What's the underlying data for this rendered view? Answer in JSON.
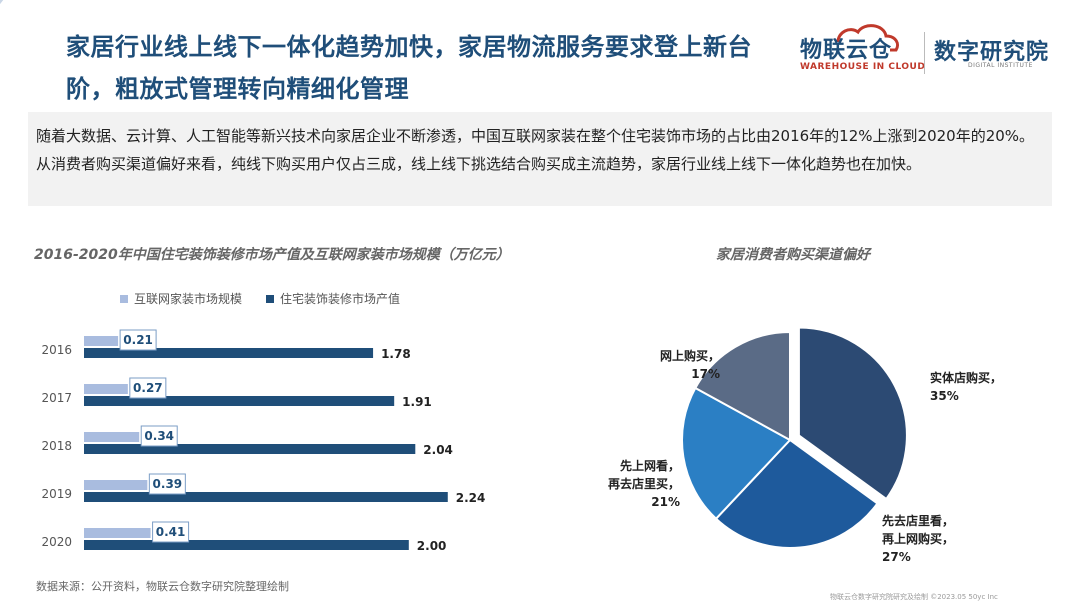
{
  "header": {
    "title": "家居行业线上线下一体化趋势加快，家居物流服务要求登上新台阶，粗放式管理转向精细化管理"
  },
  "logo": {
    "brand_main": "物联云仓",
    "brand_sub": "WAREHOUSE IN CLOUD",
    "institute_main": "数字研究院",
    "institute_sub": "DIGITAL INSTITUTE"
  },
  "intro": {
    "text": "随着大数据、云计算、人工智能等新兴技术向家居企业不断渗透，中国互联网家装在整个住宅装饰市场的占比由2016年的12%上涨到2020年的20%。从消费者购买渠道偏好来看，纯线下购买用户仅占三成，线上线下挑选结合购买成主流趋势，家居行业线上线下一体化趋势也在加快。"
  },
  "source": "数据来源：公开资料，物联云仓数字研究院整理绘制",
  "footer": "物联云仓数字研究院研究及绘制 ©2023.05 50yc Inc",
  "colors": {
    "brand_blue": "#1f4e79",
    "light_bar": "#a9bcdf",
    "dark_bar": "#1f4e79"
  },
  "chart_data": [
    {
      "type": "bar",
      "orientation": "horizontal",
      "title": "2016-2020年中国住宅装饰装修市场产值及互联网家装市场规模（万亿元）",
      "categories": [
        "2016",
        "2017",
        "2018",
        "2019",
        "2020"
      ],
      "series": [
        {
          "name": "互联网家装市场规模",
          "values": [
            0.21,
            0.27,
            0.34,
            0.39,
            0.41
          ],
          "labels": [
            "0.21",
            "0.27",
            "0.34",
            "0.39",
            "0.41"
          ],
          "color": "#a9bcdf"
        },
        {
          "name": "住宅装饰装修市场产值",
          "values": [
            1.78,
            1.91,
            2.04,
            2.24,
            2.0
          ],
          "labels": [
            "1.78",
            "1.91",
            "2.04",
            "2.24",
            "2.00"
          ],
          "color": "#1f4e79"
        }
      ],
      "xlim": [
        0,
        2.5
      ],
      "grid": false,
      "legend_position": "top"
    },
    {
      "type": "pie",
      "title": "家居消费者购买渠道偏好",
      "slices": [
        {
          "label": "实体店购买，35%",
          "value": 35,
          "color": "#2c4a73"
        },
        {
          "label": "先去店里看，再上网购买，27%",
          "value": 27,
          "color": "#1e5a9c"
        },
        {
          "label": "先上网看，再去店里买，21%",
          "value": 21,
          "color": "#2b7fc4"
        },
        {
          "label": "网上购买，17%",
          "value": 17,
          "color": "#5a6b86"
        }
      ]
    }
  ]
}
